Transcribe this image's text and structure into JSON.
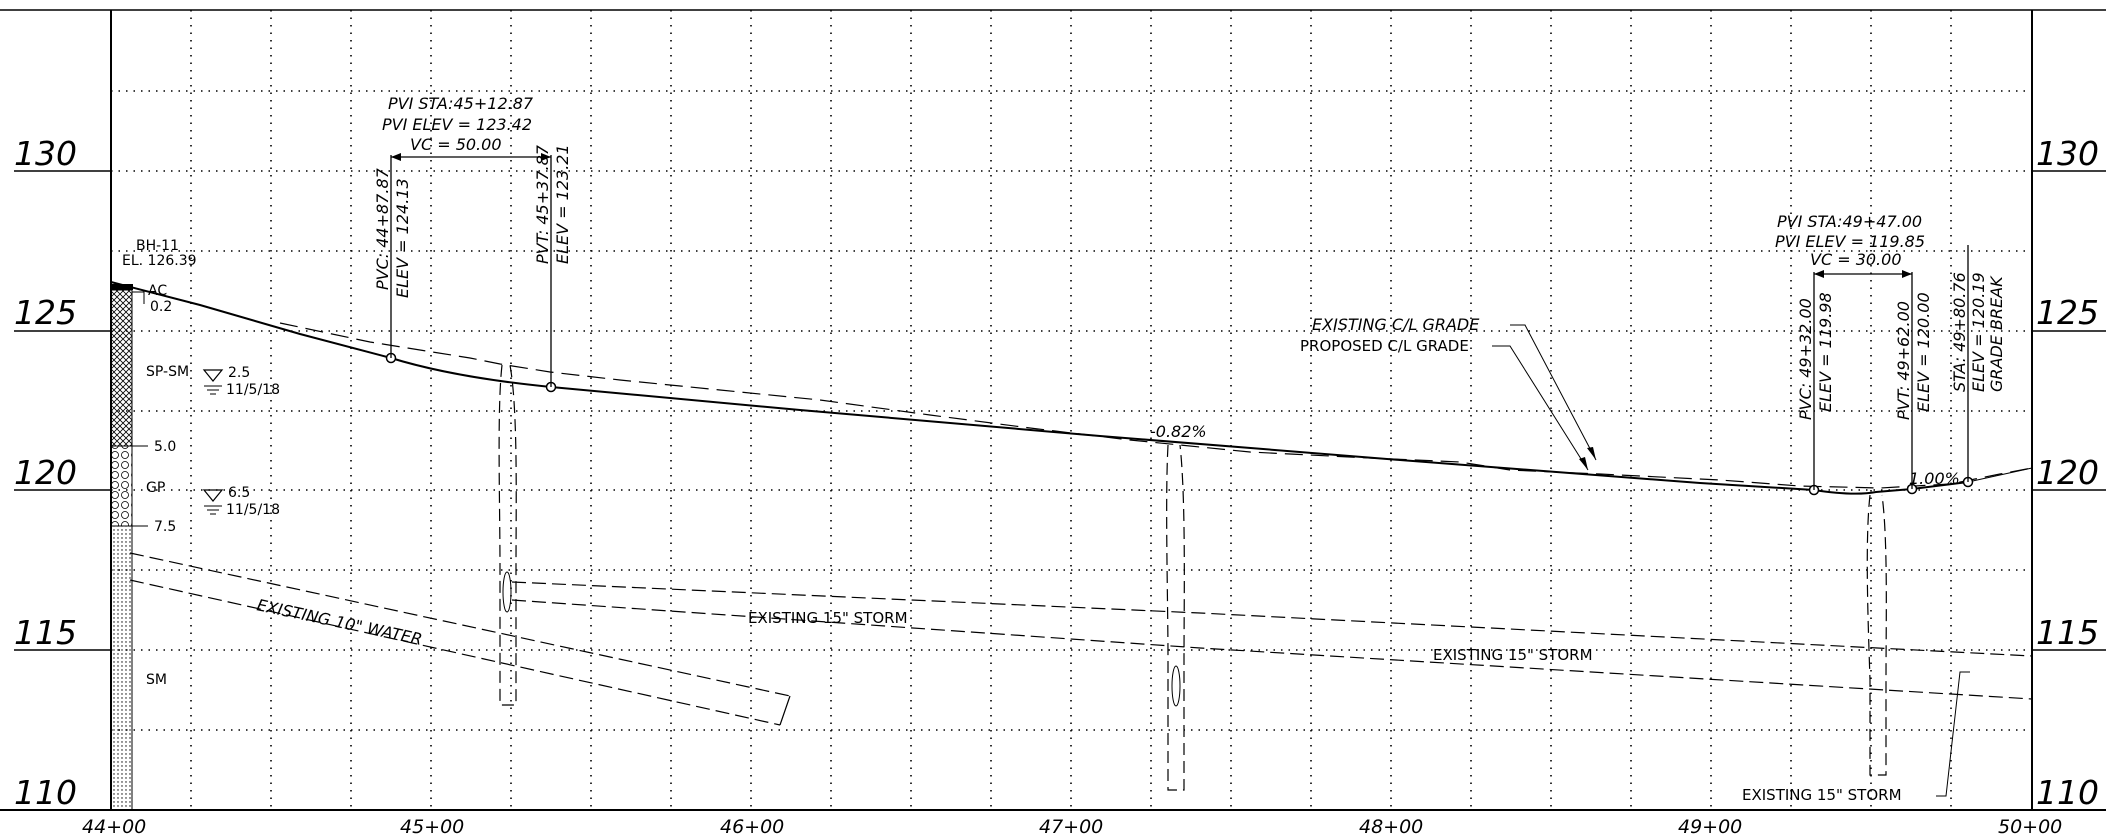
{
  "elevation_labels_left": [
    "130",
    "125",
    "120",
    "115",
    "110"
  ],
  "elevation_labels_right": [
    "130",
    "125",
    "120",
    "115",
    "110"
  ],
  "station_labels": [
    "44+00",
    "45+00",
    "46+00",
    "47+00",
    "48+00",
    "49+00",
    "50+00"
  ],
  "boring": {
    "id": "BH-11",
    "elevation": "EL. 126.39",
    "layers": [
      {
        "code": "AC",
        "depth": "0.2"
      },
      {
        "code": "SP-SM",
        "depth": ""
      },
      {
        "code": "GP",
        "depth": "5.0"
      },
      {
        "code": "",
        "depth": "7.5"
      },
      {
        "code": "SM",
        "depth": ""
      }
    ],
    "water_levels": [
      {
        "depth": "2.5",
        "date": "11/5/18"
      },
      {
        "depth": "6.5",
        "date": "11/5/18"
      }
    ]
  },
  "vertical_curves": [
    {
      "pvi_sta": "PVI STA:45+12.87",
      "pvi_elev": "PVI ELEV = 123.42",
      "vc": "VC = 50.00",
      "pvc": "PVC: 44+87.87",
      "pvc_elev": "ELEV = 124.13",
      "pvt": "PVT: 45+37.87",
      "pvt_elev": "ELEV = 123.21"
    },
    {
      "pvi_sta": "PVI STA:49+47.00",
      "pvi_elev": "PVI ELEV = 119.85",
      "vc": "VC = 30.00",
      "pvc": "PVC: 49+32.00",
      "pvc_elev": "ELEV = 119.98",
      "pvt": "PVT: 49+62.00",
      "pvt_elev": "ELEV = 120.00"
    }
  ],
  "grade_break": {
    "sta": "STA: 49+80.76",
    "elev": "ELEV = 120.19",
    "label": "GRADE BREAK"
  },
  "grades": [
    "-0.82%",
    "1.00%"
  ],
  "callouts": {
    "existing_grade": "EXISTING C/L GRADE",
    "proposed_grade": "PROPOSED C/L GRADE"
  },
  "utilities": {
    "water": "EXISTING 10\" WATER",
    "storm_1": "EXISTING 15\" STORM",
    "storm_2": "EXISTING 15\" STORM",
    "storm_3": "EXISTING 15\" STORM"
  }
}
